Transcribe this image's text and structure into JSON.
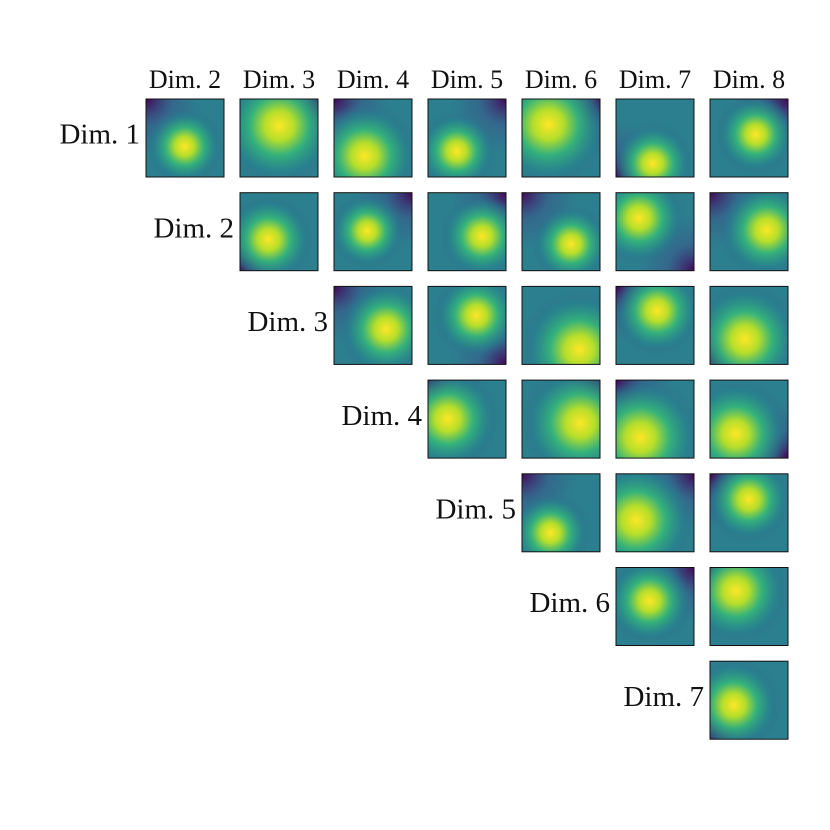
{
  "chart_data": {
    "type": "pairwise-heatmap-grid",
    "col_labels": [
      "Dim. 2",
      "Dim. 3",
      "Dim. 4",
      "Dim. 5",
      "Dim. 6",
      "Dim. 7",
      "Dim. 8"
    ],
    "row_labels": [
      "Dim. 1",
      "Dim. 2",
      "Dim. 3",
      "Dim. 4",
      "Dim. 5",
      "Dim. 6",
      "Dim. 7"
    ],
    "colormap": "viridis"
  }
}
